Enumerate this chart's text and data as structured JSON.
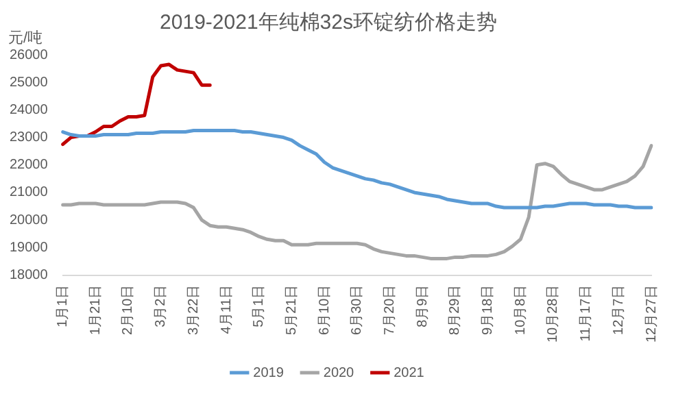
{
  "chart_data": {
    "type": "line",
    "title": "2019-2021年纯棉32s环锭纺价格走势",
    "ylabel": "元/吨",
    "categories": [
      "1月1日",
      null,
      null,
      null,
      "1月21日",
      null,
      null,
      null,
      "2月10日",
      null,
      null,
      null,
      "3月2日",
      null,
      null,
      null,
      "3月22日",
      null,
      null,
      null,
      "4月11日",
      null,
      null,
      null,
      "5月1日",
      null,
      null,
      null,
      "5月21日",
      null,
      null,
      null,
      "6月10日",
      null,
      null,
      null,
      "6月30日",
      null,
      null,
      null,
      "7月20日",
      null,
      null,
      null,
      "8月9日",
      null,
      null,
      null,
      "8月29日",
      null,
      null,
      null,
      "9月18日",
      null,
      null,
      null,
      "10月8日",
      null,
      null,
      null,
      "10月28日",
      null,
      null,
      null,
      "11月17日",
      null,
      null,
      null,
      "12月7日",
      null,
      null,
      null,
      "12月27日"
    ],
    "series": [
      {
        "name": "2019",
        "color": "#5b9bd5",
        "values": [
          23200,
          23100,
          23050,
          23050,
          23050,
          23100,
          23100,
          23100,
          23100,
          23150,
          23150,
          23150,
          23200,
          23200,
          23200,
          23200,
          23250,
          23250,
          23250,
          23250,
          23250,
          23250,
          23200,
          23200,
          23150,
          23100,
          23050,
          23000,
          22900,
          22700,
          22550,
          22400,
          22100,
          21900,
          21800,
          21700,
          21600,
          21500,
          21450,
          21350,
          21300,
          21200,
          21100,
          21000,
          20950,
          20900,
          20850,
          20750,
          20700,
          20650,
          20600,
          20600,
          20600,
          20500,
          20450,
          20450,
          20450,
          20450,
          20450,
          20500,
          20500,
          20550,
          20600,
          20600,
          20600,
          20550,
          20550,
          20550,
          20500,
          20500,
          20450,
          20450,
          20450
        ]
      },
      {
        "name": "2020",
        "color": "#a5a5a5",
        "values": [
          20550,
          20550,
          20600,
          20600,
          20600,
          20550,
          20550,
          20550,
          20550,
          20550,
          20550,
          20600,
          20650,
          20650,
          20650,
          20600,
          20450,
          20000,
          19800,
          19750,
          19750,
          19700,
          19650,
          19550,
          19400,
          19300,
          19250,
          19250,
          19100,
          19100,
          19100,
          19150,
          19150,
          19150,
          19150,
          19150,
          19150,
          19100,
          18950,
          18850,
          18800,
          18750,
          18700,
          18700,
          18650,
          18600,
          18600,
          18600,
          18650,
          18650,
          18700,
          18700,
          18700,
          18750,
          18850,
          19050,
          19300,
          20100,
          22000,
          22050,
          21950,
          21650,
          21400,
          21300,
          21200,
          21100,
          21100,
          21200,
          21300,
          21400,
          21600,
          21950,
          22700
        ]
      },
      {
        "name": "2021",
        "color": "#c00000",
        "values": [
          22750,
          23000,
          23050,
          23050,
          23200,
          23400,
          23400,
          23600,
          23750,
          23750,
          23800,
          25200,
          25600,
          25650,
          25450,
          25400,
          25350,
          24900,
          24900,
          null,
          null,
          null,
          null,
          null,
          null,
          null,
          null,
          null,
          null,
          null,
          null,
          null,
          null,
          null,
          null,
          null,
          null,
          null,
          null,
          null,
          null,
          null,
          null,
          null,
          null,
          null,
          null,
          null,
          null,
          null,
          null,
          null,
          null,
          null,
          null,
          null,
          null,
          null,
          null,
          null,
          null,
          null,
          null,
          null,
          null,
          null,
          null,
          null,
          null,
          null,
          null,
          null,
          null
        ]
      }
    ],
    "ylim": [
      18000,
      26000
    ],
    "yticks": [
      18000,
      19000,
      20000,
      21000,
      22000,
      23000,
      24000,
      25000,
      26000
    ],
    "grid": false,
    "legend": "bottom",
    "marker": "none",
    "line_style": "solid"
  }
}
